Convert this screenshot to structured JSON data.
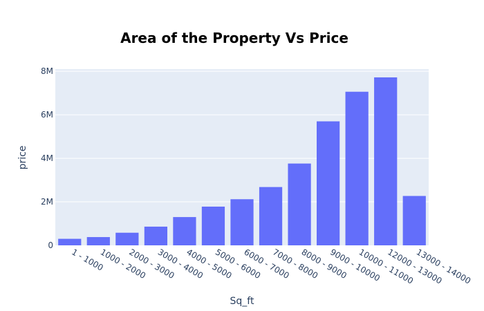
{
  "chart_data": {
    "type": "bar",
    "title": "Area of the Property Vs Price",
    "xlabel": "Sq_ft",
    "ylabel": "price",
    "categories": [
      "1 - 1000",
      "1000 - 2000",
      "2000 - 3000",
      "3000 - 4000",
      "4000 - 5000",
      "5000 - 6000",
      "6000 - 7000",
      "7000 - 8000",
      "8000 - 9000",
      "9000 - 10000",
      "10000 - 11000",
      "12000 - 13000",
      "13000 - 14000"
    ],
    "values": [
      300000,
      380000,
      580000,
      860000,
      1300000,
      1780000,
      2120000,
      2680000,
      3760000,
      5700000,
      7060000,
      7720000,
      2270000
    ],
    "ylim": [
      0,
      8100000
    ],
    "yticks": [
      {
        "value": 0,
        "label": "0"
      },
      {
        "value": 2000000,
        "label": "2M"
      },
      {
        "value": 4000000,
        "label": "4M"
      },
      {
        "value": 6000000,
        "label": "6M"
      },
      {
        "value": 8000000,
        "label": "8M"
      }
    ],
    "grid": true,
    "colors": {
      "bar": "#636efa",
      "plot_background": "#e5ecf6",
      "gridline": "#ffffff"
    }
  }
}
